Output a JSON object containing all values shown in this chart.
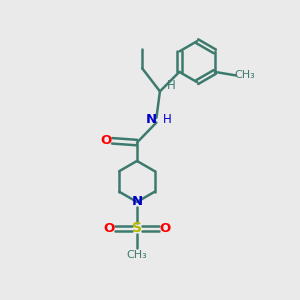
{
  "background_color": "#eaeaea",
  "bond_color": "#3d7a6e",
  "bond_width": 1.8,
  "atom_colors": {
    "O": "#ff0000",
    "N": "#0000cc",
    "S": "#b8b800",
    "C": "#3d7a6e",
    "H": "#3d7a6e"
  },
  "figsize": [
    3.0,
    3.0
  ],
  "dpi": 100,
  "xlim": [
    0.0,
    6.0
  ],
  "ylim": [
    0.0,
    7.5
  ]
}
